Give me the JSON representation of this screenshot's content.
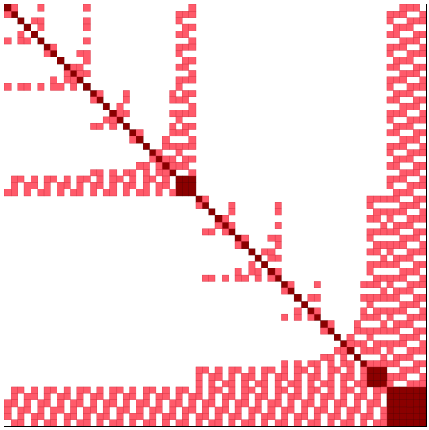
{
  "chart_data": {
    "type": "heatmap",
    "title": "",
    "xlabel": "",
    "ylabel": "",
    "n": 64,
    "grid": false,
    "legend": "none",
    "colors": {
      "light": "#ff5a6a",
      "dark": "#8b0000",
      "border": "#000000",
      "background": "#ffffff"
    },
    "description_kind": "sparsity pattern of a symmetric block matrix (nested dissection style)"
  }
}
